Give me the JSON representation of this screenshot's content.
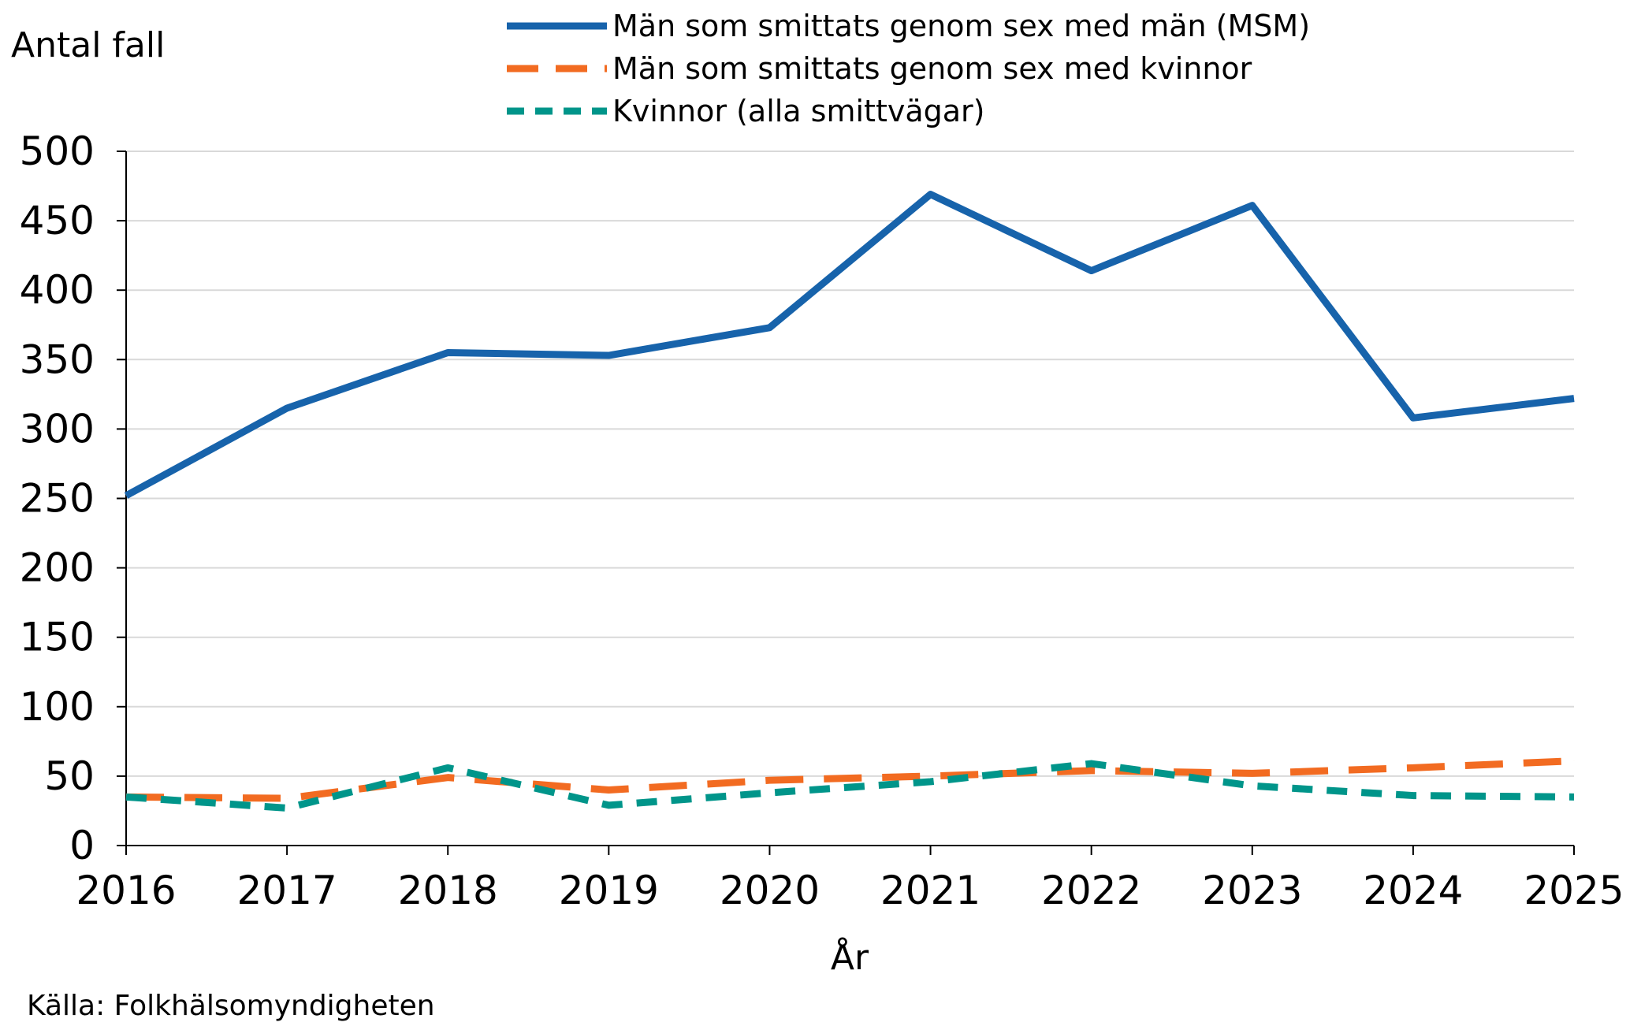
{
  "chart_data": {
    "type": "line",
    "ylabel": "Antal fall",
    "xlabel": "År",
    "source": "Källa: Folkhälsomyndigheten",
    "ylim": [
      0,
      500
    ],
    "y_ticks": [
      0,
      50,
      100,
      150,
      200,
      250,
      300,
      350,
      400,
      450,
      500
    ],
    "categories": [
      "2016",
      "2017",
      "2018",
      "2019",
      "2020",
      "2021",
      "2022",
      "2023",
      "2024",
      "2025"
    ],
    "grid": "horizontal",
    "legend_position": "top-center",
    "series": [
      {
        "name": "Män som smittats genom sex med män (MSM)",
        "color": "#1763AB",
        "style": "solid",
        "values": [
          252,
          315,
          355,
          353,
          373,
          469,
          414,
          461,
          308,
          322
        ]
      },
      {
        "name": "Män som smittats genom sex med kvinnor",
        "color": "#F26B21",
        "style": "dashed",
        "values": [
          35,
          34,
          49,
          40,
          47,
          50,
          54,
          52,
          56,
          61
        ]
      },
      {
        "name": "Kvinnor (alla smittvägar)",
        "color": "#00958A",
        "style": "dashed",
        "values": [
          35,
          27,
          56,
          29,
          38,
          46,
          59,
          43,
          36,
          35
        ]
      }
    ]
  }
}
